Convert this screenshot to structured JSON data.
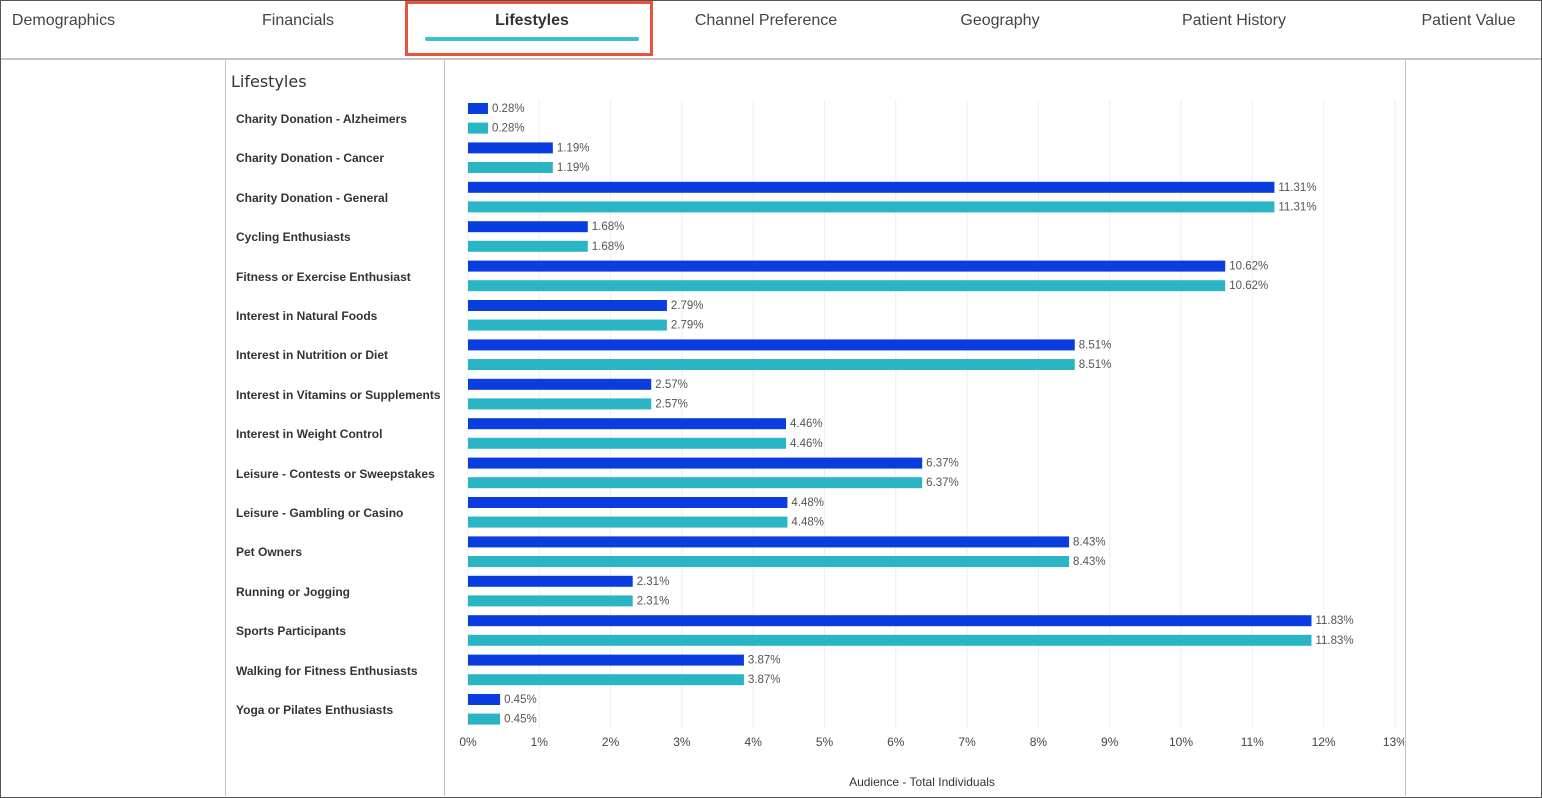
{
  "tabs": [
    {
      "label": "Demographics"
    },
    {
      "label": "Financials"
    },
    {
      "label": "Lifestyles",
      "active": true
    },
    {
      "label": "Channel Preference"
    },
    {
      "label": "Geography"
    },
    {
      "label": "Patient History"
    },
    {
      "label": "Patient Value"
    }
  ],
  "section_title": "Lifestyles",
  "colors": {
    "series_a": "#0a3de0",
    "series_b": "#2ab5c4",
    "tab_underline": "#3fbccd",
    "highlight": "#e8533b"
  },
  "chart_data": {
    "type": "bar",
    "orientation": "horizontal",
    "categories": [
      "Charity Donation - Alzheimers",
      "Charity Donation - Cancer",
      "Charity Donation - General",
      "Cycling Enthusiasts",
      "Fitness or Exercise Enthusiast",
      "Interest in Natural Foods",
      "Interest in Nutrition or Diet",
      "Interest in Vitamins or Supplements",
      "Interest in Weight Control",
      "Leisure - Contests or Sweepstakes",
      "Leisure - Gambling or Casino",
      "Pet Owners",
      "Running or Jogging",
      "Sports Participants",
      "Walking for Fitness Enthusiasts",
      "Yoga or Pilates Enthusiasts"
    ],
    "series": [
      {
        "values": [
          0.28,
          1.19,
          11.31,
          1.68,
          10.62,
          2.79,
          8.51,
          2.57,
          4.46,
          6.37,
          4.48,
          8.43,
          2.31,
          11.83,
          3.87,
          0.45
        ]
      },
      {
        "values": [
          0.28,
          1.19,
          11.31,
          1.68,
          10.62,
          2.79,
          8.51,
          2.57,
          4.46,
          6.37,
          4.48,
          8.43,
          2.31,
          11.83,
          3.87,
          0.45
        ]
      }
    ],
    "value_labels": [
      [
        "0.28%",
        "1.19%",
        "11.31%",
        "1.68%",
        "10.62%",
        "2.79%",
        "8.51%",
        "2.57%",
        "4.46%",
        "6.37%",
        "4.48%",
        "8.43%",
        "2.31%",
        "11.83%",
        "3.87%",
        "0.45%"
      ],
      [
        "0.28%",
        "1.19%",
        "11.31%",
        "1.68%",
        "10.62%",
        "2.79%",
        "8.51%",
        "2.57%",
        "4.46%",
        "6.37%",
        "4.48%",
        "8.43%",
        "2.31%",
        "11.83%",
        "3.87%",
        "0.45%"
      ]
    ],
    "x_ticks": [
      "0%",
      "1%",
      "2%",
      "3%",
      "4%",
      "5%",
      "6%",
      "7%",
      "8%",
      "9%",
      "10%",
      "11%",
      "12%",
      "13%"
    ],
    "xlim": [
      0,
      13
    ],
    "xlabel": "Audience - Total Individuals",
    "grid": "vertical"
  }
}
